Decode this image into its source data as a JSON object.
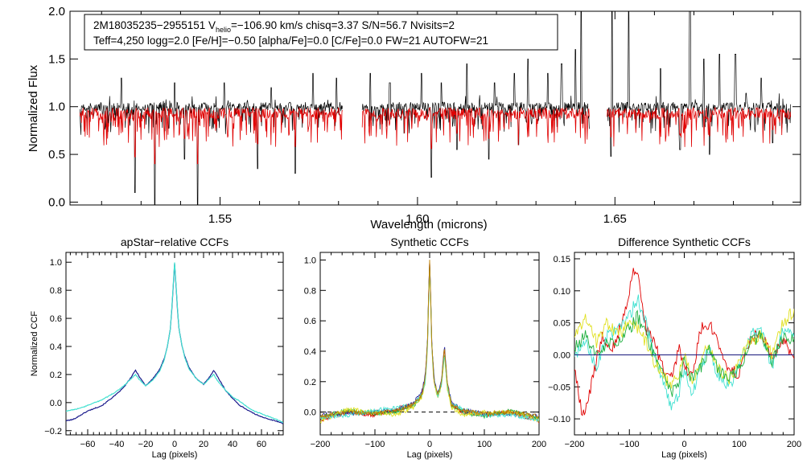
{
  "chart_data": [
    {
      "type": "line",
      "panel": "spectrum",
      "xlabel": "Wavelength (microns)",
      "ylabel": "Normalized Flux",
      "xlim": [
        1.512,
        1.697
      ],
      "ylim": [
        -0.03,
        2.0
      ],
      "x_ticks": [
        1.55,
        1.6,
        1.65
      ],
      "x_tick_labels": [
        "1.55",
        "1.60",
        "1.65"
      ],
      "y_ticks": [
        0.0,
        0.5,
        1.0,
        1.5,
        2.0
      ],
      "y_tick_labels": [
        "0.0",
        "0.5",
        "1.0",
        "1.5",
        "2.0"
      ],
      "chips": [
        [
          1.5145,
          1.581
        ],
        [
          1.586,
          1.6435
        ],
        [
          1.648,
          1.6945
        ]
      ],
      "series": [
        {
          "name": "observed",
          "color": "#000000",
          "baseline": 1.0
        },
        {
          "name": "synthetic",
          "color": "#e00000",
          "baseline": 0.93
        }
      ],
      "strong_absorption": [
        {
          "x": 1.5285,
          "y": 0.1
        },
        {
          "x": 1.5335,
          "y": -0.03
        },
        {
          "x": 1.5443,
          "y": -0.03
        },
        {
          "x": 1.541,
          "y": 0.45
        },
        {
          "x": 1.5595,
          "y": 0.35
        },
        {
          "x": 1.569,
          "y": 0.3
        },
        {
          "x": 1.6035,
          "y": 0.26
        },
        {
          "x": 1.61,
          "y": 0.55
        },
        {
          "x": 1.618,
          "y": 0.45
        },
        {
          "x": 1.6256,
          "y": 0.6
        },
        {
          "x": 1.633,
          "y": 0.55
        },
        {
          "x": 1.649,
          "y": 0.48
        },
        {
          "x": 1.6665,
          "y": 0.55
        },
        {
          "x": 1.674,
          "y": 0.5
        },
        {
          "x": 1.69,
          "y": 0.62
        }
      ],
      "emission_spikes": [
        {
          "x": 1.525,
          "y": 1.3
        },
        {
          "x": 1.5385,
          "y": 1.25
        },
        {
          "x": 1.551,
          "y": 1.25
        },
        {
          "x": 1.563,
          "y": 1.2
        },
        {
          "x": 1.5735,
          "y": 1.35
        },
        {
          "x": 1.5795,
          "y": 1.3
        },
        {
          "x": 1.588,
          "y": 1.35
        },
        {
          "x": 1.593,
          "y": 1.25
        },
        {
          "x": 1.601,
          "y": 1.35
        },
        {
          "x": 1.606,
          "y": 1.25
        },
        {
          "x": 1.6125,
          "y": 1.45
        },
        {
          "x": 1.6195,
          "y": 1.25
        },
        {
          "x": 1.6245,
          "y": 1.35
        },
        {
          "x": 1.628,
          "y": 1.5
        },
        {
          "x": 1.633,
          "y": 1.35
        },
        {
          "x": 1.6365,
          "y": 1.45
        },
        {
          "x": 1.64,
          "y": 1.6
        },
        {
          "x": 1.6415,
          "y": 2.0
        },
        {
          "x": 1.6492,
          "y": 2.0
        },
        {
          "x": 1.6535,
          "y": 2.0
        },
        {
          "x": 1.6615,
          "y": 1.4
        },
        {
          "x": 1.669,
          "y": 2.0
        },
        {
          "x": 1.6725,
          "y": 1.5
        },
        {
          "x": 1.6765,
          "y": 1.55
        },
        {
          "x": 1.6805,
          "y": 1.55
        },
        {
          "x": 1.687,
          "y": 1.3
        }
      ],
      "info_line1_parts": [
        "2M18035235−2955151  V",
        "helio",
        "=−106.90 km/s  chisq=3.37  S/N=56.7  Nvisits=2"
      ],
      "info_line2": "Teff=4,250 logg=2.0 [Fe/H]=−0.50 [alpha/Fe]=0.0 [C/Fe]=0.0 FW=21 AUTOFW=21"
    },
    {
      "type": "line",
      "panel": "apstar-ccf",
      "title": "apStar−relative CCFs",
      "xlabel": "Lag (pixels)",
      "ylabel": "Normalized CCF",
      "xlim": [
        -75,
        75
      ],
      "ylim": [
        -0.23,
        1.07
      ],
      "x_ticks": [
        -60,
        -40,
        -20,
        0,
        20,
        40,
        60
      ],
      "x_tick_labels": [
        "−60",
        "−40",
        "−20",
        "0",
        "20",
        "40",
        "60"
      ],
      "y_ticks": [
        -0.2,
        0.0,
        0.2,
        0.4,
        0.6,
        0.8,
        1.0
      ],
      "y_tick_labels": [
        "−0.2",
        "0.0",
        "0.2",
        "0.4",
        "0.6",
        "0.8",
        "1.0"
      ],
      "series": [
        {
          "name": "visit 1",
          "color": "#1a1a8c",
          "x": [
            -75,
            -70,
            -65,
            -60,
            -55,
            -50,
            -45,
            -40,
            -35,
            -30,
            -27,
            -24,
            -20,
            -15,
            -10,
            -7,
            -5,
            -3,
            -2,
            -1,
            0,
            1,
            2,
            3,
            5,
            7,
            10,
            15,
            20,
            24,
            27,
            30,
            35,
            40,
            45,
            50,
            55,
            60,
            65,
            70,
            75
          ],
          "y": [
            -0.13,
            -0.12,
            -0.09,
            -0.06,
            -0.04,
            -0.02,
            0.02,
            0.06,
            0.11,
            0.18,
            0.23,
            0.18,
            0.12,
            0.17,
            0.24,
            0.32,
            0.4,
            0.52,
            0.65,
            0.82,
            0.99,
            0.83,
            0.66,
            0.53,
            0.41,
            0.33,
            0.25,
            0.17,
            0.13,
            0.18,
            0.23,
            0.18,
            0.09,
            0.03,
            -0.02,
            -0.05,
            -0.08,
            -0.1,
            -0.12,
            -0.13,
            -0.15
          ]
        },
        {
          "name": "visit 2",
          "color": "#40e0d0",
          "x": [
            -75,
            -70,
            -65,
            -60,
            -55,
            -50,
            -45,
            -40,
            -35,
            -30,
            -27,
            -24,
            -20,
            -15,
            -10,
            -7,
            -5,
            -3,
            -2,
            -1,
            0,
            1,
            2,
            3,
            5,
            7,
            10,
            15,
            20,
            24,
            27,
            30,
            35,
            40,
            45,
            50,
            55,
            60,
            65,
            70,
            75
          ],
          "y": [
            -0.06,
            -0.05,
            -0.04,
            -0.02,
            0.0,
            0.02,
            0.05,
            0.08,
            0.12,
            0.17,
            0.2,
            0.16,
            0.12,
            0.16,
            0.23,
            0.31,
            0.4,
            0.52,
            0.66,
            0.83,
            1.0,
            0.84,
            0.67,
            0.53,
            0.41,
            0.32,
            0.24,
            0.17,
            0.13,
            0.17,
            0.2,
            0.15,
            0.09,
            0.04,
            0.01,
            -0.03,
            -0.06,
            -0.08,
            -0.1,
            -0.12,
            -0.14
          ]
        }
      ]
    },
    {
      "type": "line",
      "panel": "synthetic-ccf",
      "title": "Synthetic CCFs",
      "xlabel": "Lag (pixels)",
      "ylabel": "",
      "xlim": [
        -200,
        200
      ],
      "ylim": [
        -0.15,
        1.05
      ],
      "x_ticks": [
        -200,
        -100,
        0,
        100,
        200
      ],
      "x_tick_labels": [
        "−200",
        "−100",
        "0",
        "100",
        "200"
      ],
      "y_ticks": [
        0.0,
        0.2,
        0.4,
        0.6,
        0.8,
        1.0
      ],
      "y_tick_labels": [
        "0.0",
        "0.2",
        "0.4",
        "0.6",
        "0.8",
        "1.0"
      ],
      "reference_line": 0.0,
      "series": [
        {
          "name": "red",
          "color": "#e00000",
          "x": [
            -200,
            -150,
            -100,
            -60,
            -30,
            -15,
            -8,
            -4,
            -2,
            0,
            2,
            4,
            8,
            15,
            22,
            27,
            32,
            40,
            60,
            100,
            150,
            200
          ],
          "y": [
            -0.05,
            0.0,
            -0.02,
            0.02,
            0.05,
            0.12,
            0.22,
            0.45,
            0.75,
            1.0,
            0.74,
            0.44,
            0.21,
            0.1,
            0.2,
            0.42,
            0.18,
            0.05,
            0.0,
            -0.02,
            0.0,
            -0.06
          ]
        },
        {
          "name": "blue",
          "color": "#2020a0",
          "x": [
            -200,
            -150,
            -100,
            -60,
            -30,
            -15,
            -8,
            -4,
            -2,
            0,
            2,
            4,
            8,
            15,
            22,
            27,
            32,
            40,
            60,
            100,
            150,
            200
          ],
          "y": [
            -0.02,
            -0.01,
            0.0,
            0.01,
            0.06,
            0.12,
            0.24,
            0.46,
            0.76,
            0.98,
            0.75,
            0.45,
            0.22,
            0.12,
            0.22,
            0.44,
            0.2,
            0.06,
            0.01,
            -0.01,
            -0.01,
            -0.03
          ]
        },
        {
          "name": "green",
          "color": "#20b040",
          "x": [
            -200,
            -150,
            -100,
            -60,
            -30,
            -15,
            -8,
            -4,
            -2,
            0,
            2,
            4,
            8,
            15,
            22,
            27,
            32,
            40,
            60,
            100,
            150,
            200
          ],
          "y": [
            -0.03,
            0.01,
            -0.01,
            0.0,
            0.04,
            0.1,
            0.21,
            0.44,
            0.73,
            0.97,
            0.73,
            0.43,
            0.2,
            0.1,
            0.19,
            0.4,
            0.17,
            0.04,
            0.0,
            -0.03,
            0.01,
            -0.04
          ]
        },
        {
          "name": "yellow",
          "color": "#e0e020",
          "x": [
            -200,
            -150,
            -100,
            -60,
            -30,
            -15,
            -8,
            -4,
            -2,
            0,
            2,
            4,
            8,
            15,
            22,
            27,
            32,
            40,
            60,
            100,
            150,
            200
          ],
          "y": [
            -0.06,
            0.02,
            0.0,
            -0.02,
            0.03,
            0.09,
            0.19,
            0.42,
            0.7,
            0.95,
            0.71,
            0.41,
            0.19,
            0.09,
            0.18,
            0.38,
            0.16,
            0.03,
            -0.02,
            0.0,
            0.0,
            -0.05
          ]
        },
        {
          "name": "cyan",
          "color": "#40e0d0",
          "x": [
            -200,
            -150,
            -100,
            -60,
            -30,
            -15,
            -8,
            -4,
            -2,
            0,
            2,
            4,
            8,
            15,
            22,
            27,
            32,
            40,
            60,
            100,
            150,
            200
          ],
          "y": [
            -0.04,
            -0.02,
            0.01,
            0.03,
            0.05,
            0.11,
            0.2,
            0.43,
            0.72,
            0.96,
            0.72,
            0.42,
            0.2,
            0.11,
            0.19,
            0.39,
            0.18,
            0.05,
            0.02,
            -0.02,
            -0.02,
            -0.05
          ]
        },
        {
          "name": "orange",
          "color": "#c08000",
          "x": [
            -200,
            -150,
            -100,
            -60,
            -30,
            -15,
            -8,
            -4,
            -2,
            0,
            2,
            4,
            8,
            15,
            22,
            27,
            32,
            40,
            60,
            100,
            150,
            200
          ],
          "y": [
            -0.03,
            0.0,
            -0.01,
            0.01,
            0.05,
            0.11,
            0.22,
            0.45,
            0.74,
            0.99,
            0.74,
            0.44,
            0.21,
            0.11,
            0.21,
            0.43,
            0.19,
            0.05,
            0.01,
            -0.01,
            0.0,
            -0.03
          ]
        }
      ]
    },
    {
      "type": "line",
      "panel": "difference-ccf",
      "title": "Difference Synthetic CCFs",
      "xlabel": "Lag (pixels)",
      "ylabel": "",
      "xlim": [
        -200,
        200
      ],
      "ylim": [
        -0.125,
        0.16
      ],
      "x_ticks": [
        -200,
        -100,
        0,
        100,
        200
      ],
      "x_tick_labels": [
        "−200",
        "−100",
        "0",
        "100",
        "200"
      ],
      "y_ticks": [
        -0.1,
        -0.05,
        0.0,
        0.05,
        0.1,
        0.15
      ],
      "y_tick_labels": [
        "−0.10",
        "−0.05",
        "0.00",
        "0.05",
        "0.10",
        "0.15"
      ],
      "reference_line": 0.0,
      "series": [
        {
          "name": "red",
          "color": "#e00000",
          "x": [
            -200,
            -185,
            -170,
            -150,
            -130,
            -110,
            -95,
            -88,
            -80,
            -70,
            -55,
            -40,
            -25,
            -10,
            0,
            15,
            30,
            45,
            60,
            80,
            100,
            120,
            140,
            160,
            180,
            200
          ],
          "y": [
            -0.02,
            -0.1,
            -0.05,
            0.03,
            0.01,
            0.06,
            0.12,
            0.14,
            0.1,
            0.04,
            0.02,
            -0.02,
            -0.04,
            0.01,
            -0.02,
            -0.03,
            0.04,
            0.05,
            0.02,
            -0.02,
            -0.03,
            0.02,
            0.04,
            -0.01,
            0.02,
            0.0
          ]
        },
        {
          "name": "cyan",
          "color": "#40e0d0",
          "x": [
            -200,
            -180,
            -160,
            -140,
            -120,
            -100,
            -85,
            -70,
            -55,
            -40,
            -25,
            -10,
            0,
            15,
            30,
            45,
            60,
            80,
            100,
            120,
            140,
            160,
            180,
            200
          ],
          "y": [
            0.0,
            0.02,
            -0.02,
            0.03,
            0.04,
            0.06,
            0.09,
            0.05,
            0.0,
            -0.04,
            -0.08,
            -0.06,
            -0.02,
            -0.06,
            -0.02,
            0.01,
            -0.03,
            -0.05,
            -0.02,
            0.03,
            0.04,
            -0.02,
            0.04,
            0.03
          ]
        },
        {
          "name": "yellow",
          "color": "#e0e020",
          "x": [
            -200,
            -180,
            -160,
            -140,
            -120,
            -100,
            -85,
            -70,
            -55,
            -40,
            -25,
            -10,
            0,
            15,
            30,
            45,
            60,
            80,
            100,
            120,
            140,
            160,
            180,
            200
          ],
          "y": [
            0.03,
            0.06,
            0.02,
            0.05,
            0.03,
            0.05,
            0.04,
            0.02,
            -0.01,
            -0.03,
            -0.05,
            -0.03,
            0.0,
            -0.04,
            -0.01,
            0.02,
            -0.02,
            -0.04,
            -0.01,
            0.02,
            0.03,
            0.0,
            0.05,
            0.07
          ]
        },
        {
          "name": "green",
          "color": "#20b040",
          "x": [
            -200,
            -180,
            -160,
            -140,
            -120,
            -100,
            -85,
            -70,
            -55,
            -40,
            -25,
            -10,
            0,
            15,
            30,
            45,
            60,
            80,
            100,
            120,
            140,
            160,
            180,
            200
          ],
          "y": [
            0.01,
            0.03,
            0.0,
            0.02,
            0.02,
            0.04,
            0.06,
            0.03,
            0.0,
            -0.02,
            -0.06,
            -0.04,
            -0.01,
            -0.04,
            -0.02,
            0.01,
            -0.02,
            -0.04,
            -0.02,
            0.02,
            0.03,
            -0.01,
            0.03,
            0.02
          ]
        },
        {
          "name": "blue",
          "color": "#1a1a8c",
          "x": [
            -200,
            200
          ],
          "y": [
            0.0,
            0.0
          ]
        }
      ]
    }
  ]
}
